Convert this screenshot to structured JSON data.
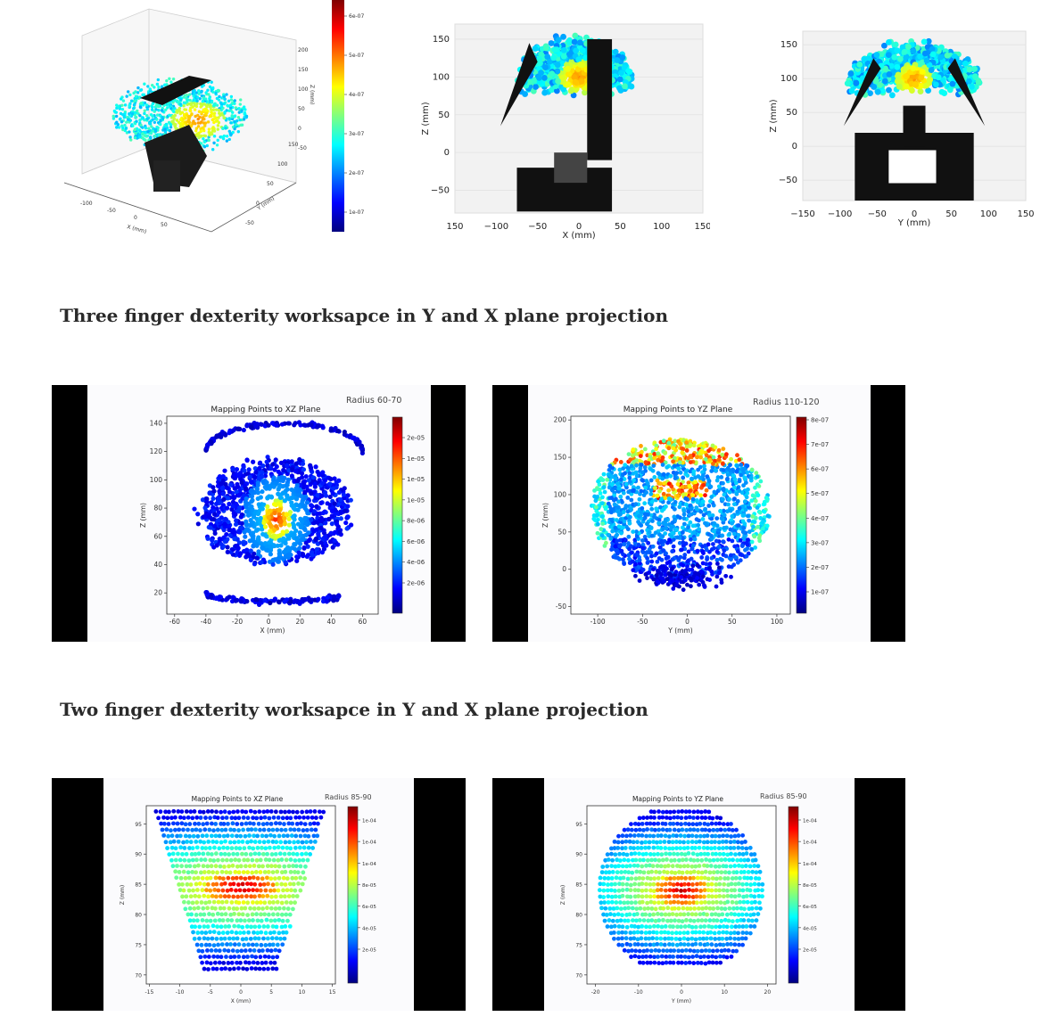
{
  "captions": {
    "three_finger": "Three finger dexterity worksapce in Y and X plane projection",
    "two_finger": "Two finger dexterity worksapce in Y and X plane projection"
  },
  "colormap": [
    "#00007f",
    "#0000ff",
    "#007fff",
    "#00ffff",
    "#7fff7f",
    "#ffff00",
    "#ff7f00",
    "#ff0000",
    "#7f0000"
  ],
  "chart_data": [
    {
      "id": "top-3d",
      "type": "scatter",
      "title": "",
      "xlabel": "X (mm)",
      "ylabel": "Y (mm)",
      "zlabel": "Z (mm)",
      "x_ticks": [
        "-100",
        "-50",
        "0",
        "50"
      ],
      "y_ticks": [
        "-50",
        "0",
        "50",
        "100",
        "150"
      ],
      "z_ticks": [
        "-50",
        "0",
        "50",
        "100",
        "150",
        "200"
      ],
      "colorbar_ticks": [
        "6e-07",
        "5e-07",
        "4e-07",
        "3e-07",
        "2e-07",
        "1e-07"
      ]
    },
    {
      "id": "top-xz",
      "type": "scatter",
      "title": "",
      "xlabel": "X (mm)",
      "ylabel": "Z (mm)",
      "x_ticks": [
        "150",
        "−100",
        "−50",
        "0",
        "50",
        "100",
        "150"
      ],
      "y_ticks": [
        "150",
        "100",
        "50",
        "0",
        "−50"
      ],
      "xlim": [
        -150,
        150
      ],
      "ylim": [
        -80,
        170
      ]
    },
    {
      "id": "top-yz",
      "type": "scatter",
      "title": "",
      "xlabel": "Y (mm)",
      "ylabel": "Z (mm)",
      "x_ticks": [
        "−150",
        "−100",
        "−50",
        "0",
        "50",
        "100",
        "150"
      ],
      "y_ticks": [
        "150",
        "100",
        "50",
        "0",
        "−50"
      ],
      "xlim": [
        -150,
        150
      ],
      "ylim": [
        -80,
        170
      ]
    },
    {
      "id": "three-xz",
      "type": "scatter",
      "title": "Mapping Points to XZ Plane",
      "radius_label": "Radius   60-70",
      "xlabel": "X (mm)",
      "ylabel": "Z (mm)",
      "x_ticks": [
        "-60",
        "-40",
        "-20",
        "0",
        "20",
        "40",
        "60"
      ],
      "y_ticks": [
        "140",
        "120",
        "100",
        "80",
        "60",
        "40",
        "20"
      ],
      "xlim": [
        -65,
        70
      ],
      "ylim": [
        5,
        145
      ],
      "colorbar_ticks": [
        "2e-05",
        "1e-05",
        "1e-05",
        "1e-05",
        "8e-06",
        "6e-06",
        "4e-06",
        "2e-06"
      ]
    },
    {
      "id": "three-yz",
      "type": "scatter",
      "title": "Mapping Points to YZ Plane",
      "radius_label": "Radius 110-120",
      "xlabel": "Y (mm)",
      "ylabel": "Z (mm)",
      "x_ticks": [
        "-100",
        "-50",
        "0",
        "50",
        "100"
      ],
      "y_ticks": [
        "200",
        "150",
        "100",
        "50",
        "0",
        "-50"
      ],
      "xlim": [
        -130,
        115
      ],
      "ylim": [
        -60,
        205
      ],
      "colorbar_ticks": [
        "8e-07",
        "7e-07",
        "6e-07",
        "5e-07",
        "4e-07",
        "3e-07",
        "2e-07",
        "1e-07"
      ]
    },
    {
      "id": "two-xz",
      "type": "scatter",
      "title": "Mapping Points to XZ Plane",
      "radius_label": "Radius 85-90",
      "xlabel": "X (mm)",
      "ylabel": "Z (mm)",
      "x_ticks": [
        "-15",
        "-10",
        "-5",
        "0",
        "5",
        "10",
        "15"
      ],
      "y_ticks": [
        "95",
        "90",
        "85",
        "80",
        "75",
        "70"
      ],
      "xlim": [
        -15.5,
        15.5
      ],
      "ylim": [
        68.5,
        98
      ],
      "colorbar_ticks": [
        "1e-04",
        "1e-04",
        "1e-04",
        "8e-05",
        "6e-05",
        "4e-05",
        "2e-05"
      ]
    },
    {
      "id": "two-yz",
      "type": "scatter",
      "title": "Mapping Points to YZ Plane",
      "radius_label": "Radius 85-90",
      "xlabel": "Y (mm)",
      "ylabel": "Z (mm)",
      "x_ticks": [
        "-20",
        "-10",
        "0",
        "10",
        "20"
      ],
      "y_ticks": [
        "95",
        "90",
        "85",
        "80",
        "75",
        "70"
      ],
      "xlim": [
        -22,
        22
      ],
      "ylim": [
        68.5,
        98
      ],
      "colorbar_ticks": [
        "1e-04",
        "1e-04",
        "1e-04",
        "8e-05",
        "6e-05",
        "4e-05",
        "2e-05"
      ]
    }
  ]
}
